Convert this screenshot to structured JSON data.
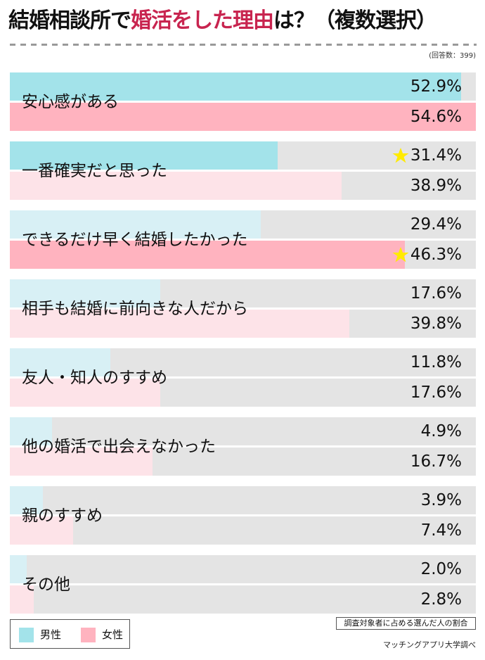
{
  "title": {
    "part1": "結婚相談所で",
    "accent": "婚活をした理由",
    "part2": "は？（複数選択）",
    "accent_color": "#c8244f"
  },
  "respondents": "(回答数：399)",
  "colors": {
    "male_highlight": "#a3e3ea",
    "male_normal": "#d8f0f5",
    "female_highlight": "#ffb3bf",
    "female_normal": "#fde3e8",
    "track": "#e4e4e4",
    "star": "#ffeb00"
  },
  "legend": {
    "male": "男性",
    "female": "女性"
  },
  "note": "調査対象者に占める選んだ人の割合",
  "source": "マッチングアプリ大学調べ",
  "chart_data": {
    "type": "bar",
    "orientation": "horizontal",
    "title": "結婚相談所で婚活をした理由は？（複数選択）",
    "subtitle": "(回答数：399)",
    "xlabel": "",
    "ylabel": "",
    "xlim": [
      0,
      54.6
    ],
    "unit": "%",
    "legend_position": "bottom-left",
    "categories": [
      "安心感がある",
      "一番確実だと思った",
      "できるだけ早く結婚したかった",
      "相手も結婚に前向きな人だから",
      "友人・知人のすすめ",
      "他の婚活で出会えなかった",
      "親のすすめ",
      "その他"
    ],
    "series": [
      {
        "name": "男性",
        "values": [
          52.9,
          31.4,
          29.4,
          17.6,
          11.8,
          4.9,
          3.9,
          2.0
        ],
        "labels": [
          "52.9%",
          "31.4%",
          "29.4%",
          "17.6%",
          "11.8%",
          "4.9%",
          "3.9%",
          "2.0%"
        ],
        "highlighted": [
          true,
          true,
          false,
          false,
          false,
          false,
          false,
          false
        ],
        "starred": [
          false,
          true,
          false,
          false,
          false,
          false,
          false,
          false
        ]
      },
      {
        "name": "女性",
        "values": [
          54.6,
          38.9,
          46.3,
          39.8,
          17.6,
          16.7,
          7.4,
          2.8
        ],
        "labels": [
          "54.6%",
          "38.9%",
          "46.3%",
          "39.8%",
          "17.6%",
          "16.7%",
          "7.4%",
          "2.8%"
        ],
        "highlighted": [
          true,
          false,
          true,
          false,
          false,
          false,
          false,
          false
        ],
        "starred": [
          false,
          false,
          true,
          false,
          false,
          false,
          false,
          false
        ]
      }
    ],
    "annotations": [
      "調査対象者に占める選んだ人の割合",
      "マッチングアプリ大学調べ"
    ]
  }
}
